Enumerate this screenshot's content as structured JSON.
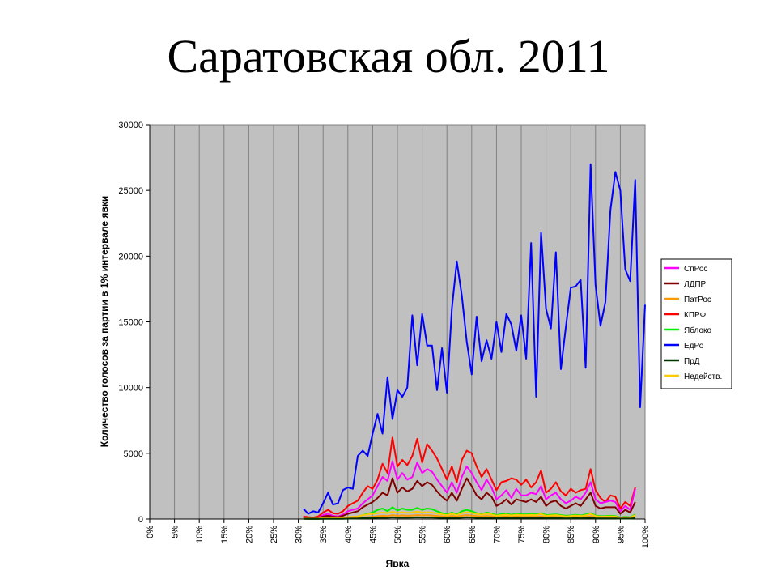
{
  "slide": {
    "title": "Саратовская обл. 2011"
  },
  "chart_data": {
    "type": "line",
    "xlabel": "Явка",
    "ylabel": "Количество голосов за партии в 1% интервале явки",
    "xlim": [
      0,
      100
    ],
    "ylim": [
      0,
      30000
    ],
    "x_ticks": [
      "0%",
      "5%",
      "10%",
      "15%",
      "20%",
      "25%",
      "30%",
      "35%",
      "40%",
      "45%",
      "50%",
      "55%",
      "60%",
      "65%",
      "70%",
      "75%",
      "80%",
      "85%",
      "90%",
      "95%",
      "100%"
    ],
    "y_ticks": [
      "0",
      "5000",
      "10000",
      "15000",
      "20000",
      "25000",
      "30000"
    ],
    "grid": "vertical",
    "legend_position": "right",
    "x_start": 31,
    "x_step": 1,
    "series": [
      {
        "name": "СпРос",
        "color": "#ff00ff",
        "values": [
          150,
          100,
          80,
          120,
          300,
          400,
          250,
          200,
          350,
          600,
          700,
          800,
          1200,
          1500,
          1800,
          2500,
          3200,
          2900,
          4400,
          3000,
          3500,
          3000,
          3200,
          4300,
          3500,
          3800,
          3600,
          3000,
          2500,
          2000,
          2800,
          2000,
          3200,
          4000,
          3500,
          2800,
          2200,
          3000,
          2400,
          1500,
          1800,
          2200,
          1600,
          2300,
          1800,
          1800,
          2000,
          1900,
          2500,
          1500,
          1800,
          2000,
          1500,
          1200,
          1400,
          1700,
          1500,
          2000,
          2800,
          1500,
          1200,
          1300,
          1400,
          1300,
          600,
          1000,
          700,
          2300
        ]
      },
      {
        "name": "ЛДПР",
        "color": "#800000",
        "values": [
          100,
          80,
          60,
          100,
          200,
          250,
          180,
          150,
          250,
          400,
          500,
          600,
          900,
          1100,
          1300,
          1600,
          2000,
          1800,
          3100,
          2000,
          2400,
          2100,
          2300,
          2900,
          2500,
          2800,
          2600,
          2100,
          1700,
          1400,
          2000,
          1400,
          2300,
          3100,
          2500,
          1800,
          1500,
          2000,
          1700,
          1000,
          1200,
          1500,
          1100,
          1500,
          1400,
          1300,
          1500,
          1300,
          1700,
          1000,
          1300,
          1400,
          1000,
          800,
          1000,
          1200,
          1000,
          1500,
          2000,
          1000,
          800,
          900,
          900,
          900,
          400,
          700,
          500,
          1300
        ]
      },
      {
        "name": "ПатРос",
        "color": "#ff9900",
        "values": [
          20,
          15,
          10,
          15,
          30,
          40,
          30,
          25,
          40,
          60,
          80,
          90,
          120,
          150,
          180,
          220,
          250,
          230,
          300,
          250,
          280,
          250,
          270,
          300,
          280,
          290,
          270,
          240,
          200,
          180,
          230,
          180,
          250,
          300,
          260,
          220,
          190,
          230,
          200,
          150,
          170,
          190,
          160,
          190,
          170,
          170,
          180,
          170,
          200,
          150,
          160,
          170,
          140,
          120,
          130,
          150,
          130,
          160,
          200,
          130,
          110,
          120,
          120,
          110,
          70,
          90,
          70,
          150
        ]
      },
      {
        "name": "КПРФ",
        "color": "#ff0000",
        "values": [
          200,
          150,
          120,
          200,
          500,
          700,
          450,
          400,
          600,
          1000,
          1200,
          1400,
          2000,
          2500,
          2300,
          3000,
          4200,
          3500,
          6200,
          4000,
          4500,
          4100,
          4800,
          6100,
          4300,
          5700,
          5200,
          4600,
          3800,
          3000,
          4000,
          2800,
          4500,
          5200,
          5000,
          4000,
          3200,
          3800,
          3000,
          2200,
          2800,
          2900,
          3100,
          3000,
          2600,
          3000,
          2400,
          2800,
          3700,
          2000,
          2300,
          2800,
          2100,
          1800,
          2300,
          2000,
          2200,
          2300,
          3800,
          2200,
          1600,
          1300,
          1800,
          1700,
          800,
          1300,
          1000,
          2400
        ]
      },
      {
        "name": "Яблоко",
        "color": "#00ee00",
        "values": [
          30,
          20,
          15,
          25,
          60,
          80,
          50,
          40,
          70,
          120,
          150,
          180,
          300,
          400,
          500,
          700,
          800,
          600,
          900,
          650,
          800,
          700,
          700,
          850,
          700,
          800,
          750,
          600,
          450,
          350,
          500,
          350,
          600,
          700,
          600,
          450,
          380,
          500,
          420,
          300,
          380,
          400,
          330,
          400,
          350,
          360,
          380,
          350,
          450,
          300,
          330,
          360,
          300,
          250,
          280,
          320,
          270,
          350,
          450,
          270,
          220,
          230,
          250,
          230,
          120,
          180,
          130,
          350
        ]
      },
      {
        "name": "ЕдРо",
        "color": "#0000ff",
        "values": [
          800,
          400,
          600,
          500,
          1200,
          2000,
          1100,
          1200,
          2200,
          2400,
          2300,
          4800,
          5200,
          4800,
          6500,
          8000,
          6500,
          10800,
          7600,
          9800,
          9300,
          10000,
          15500,
          11700,
          15600,
          13200,
          13200,
          9800,
          13000,
          9600,
          16000,
          19600,
          17000,
          13500,
          11000,
          15400,
          12000,
          13600,
          12200,
          15000,
          12700,
          15600,
          14800,
          12800,
          15500,
          12200,
          21000,
          9300,
          21800,
          16000,
          14500,
          20300,
          11400,
          14600,
          17600,
          17700,
          18200,
          11500,
          27000,
          17800,
          14700,
          16500,
          23500,
          26400,
          25000,
          19000,
          18100,
          25800,
          8500,
          16300
        ]
      },
      {
        "name": "ПрД",
        "color": "#003300",
        "values": [
          10,
          8,
          6,
          8,
          15,
          20,
          15,
          12,
          20,
          30,
          40,
          45,
          60,
          70,
          80,
          100,
          110,
          100,
          130,
          110,
          120,
          110,
          115,
          130,
          120,
          125,
          118,
          100,
          85,
          75,
          100,
          75,
          110,
          130,
          115,
          95,
          80,
          100,
          90,
          65,
          75,
          85,
          70,
          85,
          75,
          75,
          80,
          75,
          90,
          65,
          70,
          75,
          60,
          50,
          55,
          65,
          55,
          70,
          90,
          55,
          45,
          50,
          50,
          45,
          30,
          40,
          30,
          70
        ]
      },
      {
        "name": "Недейств.",
        "color": "#ffcc00",
        "values": [
          40,
          30,
          25,
          35,
          80,
          100,
          70,
          60,
          100,
          150,
          180,
          200,
          300,
          350,
          400,
          450,
          500,
          450,
          550,
          480,
          520,
          470,
          500,
          560,
          500,
          520,
          490,
          420,
          360,
          300,
          400,
          300,
          450,
          520,
          470,
          380,
          330,
          400,
          350,
          260,
          300,
          330,
          280,
          330,
          300,
          300,
          320,
          300,
          380,
          250,
          280,
          300,
          250,
          200,
          230,
          270,
          230,
          290,
          380,
          230,
          180,
          190,
          200,
          190,
          100,
          150,
          110,
          300
        ]
      }
    ]
  }
}
